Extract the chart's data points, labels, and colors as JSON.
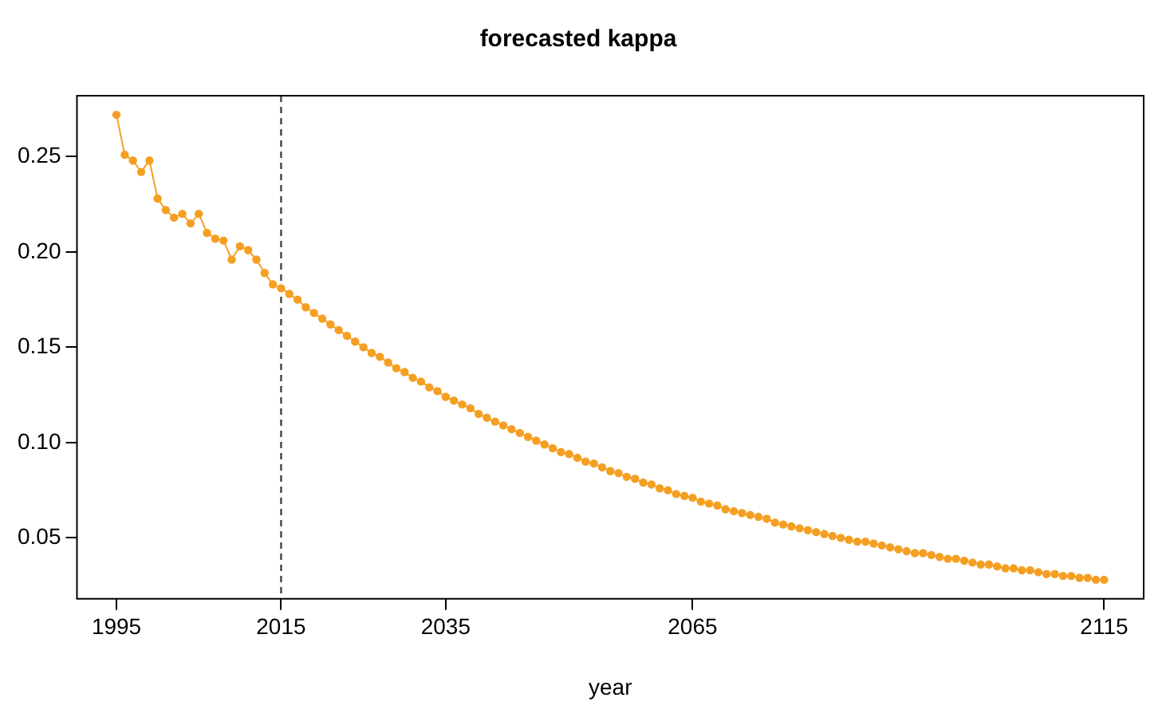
{
  "chart_data": {
    "type": "line",
    "title": "forecasted kappa",
    "xlabel": "year",
    "x": [
      1995,
      1996,
      1997,
      1998,
      1999,
      2000,
      2001,
      2002,
      2003,
      2004,
      2005,
      2006,
      2007,
      2008,
      2009,
      2010,
      2011,
      2012,
      2013,
      2014,
      2015,
      2016,
      2017,
      2018,
      2019,
      2020,
      2021,
      2022,
      2023,
      2024,
      2025,
      2026,
      2027,
      2028,
      2029,
      2030,
      2031,
      2032,
      2033,
      2034,
      2035,
      2036,
      2037,
      2038,
      2039,
      2040,
      2041,
      2042,
      2043,
      2044,
      2045,
      2046,
      2047,
      2048,
      2049,
      2050,
      2051,
      2052,
      2053,
      2054,
      2055,
      2056,
      2057,
      2058,
      2059,
      2060,
      2061,
      2062,
      2063,
      2064,
      2065,
      2066,
      2067,
      2068,
      2069,
      2070,
      2071,
      2072,
      2073,
      2074,
      2075,
      2076,
      2077,
      2078,
      2079,
      2080,
      2081,
      2082,
      2083,
      2084,
      2085,
      2086,
      2087,
      2088,
      2089,
      2090,
      2091,
      2092,
      2093,
      2094,
      2095,
      2096,
      2097,
      2098,
      2099,
      2100,
      2101,
      2102,
      2103,
      2104,
      2105,
      2106,
      2107,
      2108,
      2109,
      2110,
      2111,
      2112,
      2113,
      2114,
      2115
    ],
    "series": [
      {
        "color": "#f59f22",
        "values": [
          0.272,
          0.251,
          0.248,
          0.242,
          0.248,
          0.228,
          0.222,
          0.218,
          0.22,
          0.215,
          0.22,
          0.21,
          0.207,
          0.206,
          0.196,
          0.203,
          0.201,
          0.196,
          0.189,
          0.183,
          0.181,
          0.178,
          0.175,
          0.171,
          0.168,
          0.165,
          0.162,
          0.159,
          0.156,
          0.153,
          0.15,
          0.147,
          0.145,
          0.142,
          0.139,
          0.137,
          0.134,
          0.132,
          0.129,
          0.127,
          0.124,
          0.122,
          0.12,
          0.118,
          0.115,
          0.113,
          0.111,
          0.109,
          0.107,
          0.105,
          0.103,
          0.101,
          0.099,
          0.097,
          0.095,
          0.094,
          0.092,
          0.09,
          0.089,
          0.087,
          0.085,
          0.084,
          0.082,
          0.081,
          0.079,
          0.078,
          0.076,
          0.075,
          0.073,
          0.072,
          0.071,
          0.069,
          0.068,
          0.067,
          0.065,
          0.064,
          0.063,
          0.062,
          0.061,
          0.06,
          0.058,
          0.057,
          0.056,
          0.055,
          0.054,
          0.053,
          0.052,
          0.051,
          0.05,
          0.049,
          0.048,
          0.048,
          0.047,
          0.046,
          0.045,
          0.044,
          0.043,
          0.042,
          0.042,
          0.041,
          0.04,
          0.039,
          0.039,
          0.038,
          0.037,
          0.036,
          0.036,
          0.035,
          0.034,
          0.034,
          0.033,
          0.033,
          0.032,
          0.031,
          0.031,
          0.03,
          0.03,
          0.029,
          0.029,
          0.028,
          0.028
        ]
      }
    ],
    "xlim": [
      1990.2,
      2119.8
    ],
    "xticks": [
      1995,
      2015,
      2035,
      2065,
      2115
    ],
    "ylim": [
      0.018,
      0.282
    ],
    "yticks": [
      {
        "value": 0.05,
        "label": "0.05"
      },
      {
        "value": 0.1,
        "label": "0.10"
      },
      {
        "value": 0.15,
        "label": "0.15"
      },
      {
        "value": 0.2,
        "label": "0.20"
      },
      {
        "value": 0.25,
        "label": "0.25"
      }
    ],
    "ref_lines": [
      {
        "axis": "x",
        "value": 2015,
        "color": "#444444",
        "line_style": "dashed"
      }
    ],
    "grid": false,
    "legend": false,
    "marker": "circle",
    "line_style": "solid"
  }
}
